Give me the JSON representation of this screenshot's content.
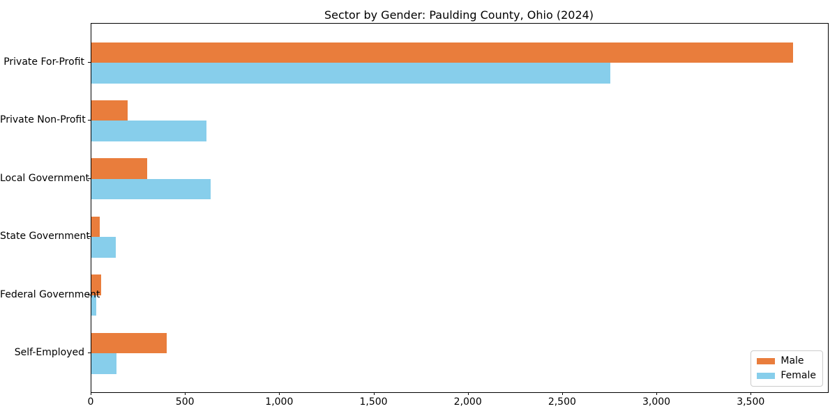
{
  "chart_data": {
    "type": "bar",
    "orientation": "horizontal",
    "title": "Sector by Gender: Paulding County, Ohio (2024)",
    "categories": [
      "Private For-Profit",
      "Private Non-Profit",
      "Local Government",
      "State Government",
      "Federal Government",
      "Self-Employed"
    ],
    "series": [
      {
        "name": "Male",
        "color": "#e97d3c",
        "values": [
          3720,
          193,
          297,
          44,
          51,
          400
        ]
      },
      {
        "name": "Female",
        "color": "#87ceeb",
        "values": [
          2752,
          610,
          631,
          128,
          27,
          135
        ]
      }
    ],
    "xlabel": "",
    "ylabel": "",
    "xlim": [
      0,
      3906
    ],
    "xticks": [
      0,
      500,
      1000,
      1500,
      2000,
      2500,
      3000,
      3500
    ],
    "xtick_labels": [
      "0",
      "500",
      "1,000",
      "1,500",
      "2,000",
      "2,500",
      "3,000",
      "3,500"
    ],
    "grid": false,
    "legend": {
      "position": "lower right"
    },
    "colors": {
      "axis": "#000000",
      "legend_border": "#cccccc",
      "background": "#ffffff"
    }
  }
}
